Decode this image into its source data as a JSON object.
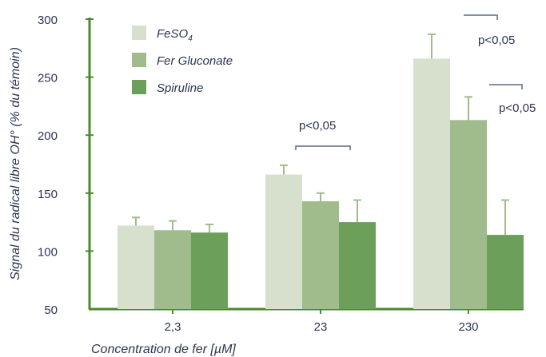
{
  "chart_data": {
    "type": "bar",
    "xlabel": "Concentration de fer [µM]",
    "ylabel": "Signal du radical libre OH° (% du témoin)",
    "ylim": [
      50,
      300
    ],
    "yticks": [
      50,
      100,
      150,
      200,
      250,
      300
    ],
    "categories": [
      "2,3",
      "23",
      "230"
    ],
    "series": [
      {
        "name": "FeSO4",
        "name_main": "FeSO",
        "name_sub": "4",
        "color": "#d6e0cc",
        "values": [
          122,
          166,
          266
        ],
        "errors": [
          7,
          8,
          21
        ]
      },
      {
        "name": "Fer Gluconate",
        "color": "#a0bc8c",
        "values": [
          118,
          143,
          213
        ],
        "errors": [
          8,
          7,
          20
        ]
      },
      {
        "name": "Spiruline",
        "color": "#6ca05a",
        "values": [
          116,
          125,
          114
        ],
        "errors": [
          7,
          19,
          30
        ]
      }
    ],
    "annotations": [
      "p<0,05",
      "p<0,05",
      "p<0,05"
    ],
    "legend_position": "top-left",
    "axis_color": "#4a8a2a",
    "error_bar_color": "#a0bc8c"
  }
}
